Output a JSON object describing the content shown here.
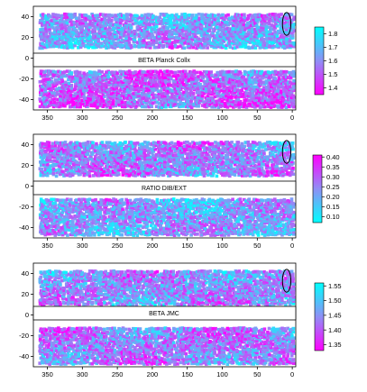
{
  "chart_data": [
    {
      "type": "scatter",
      "map_label": "BETA Planck Collx",
      "x_ticks": [
        350,
        300,
        250,
        200,
        150,
        100,
        50,
        0
      ],
      "y_ticks": [
        40,
        20,
        0,
        -20,
        -40
      ],
      "xlim": [
        370,
        -5
      ],
      "ylim": [
        -50,
        50
      ],
      "colorbar": {
        "min": 1.35,
        "max": 1.85,
        "ticks": [
          "1.8",
          "1.7",
          "1.6",
          "1.5",
          "1.4"
        ],
        "tick_values": [
          1.8,
          1.7,
          1.6,
          1.5,
          1.4
        ],
        "low_color": "#ff00ff",
        "high_color": "#00ffff"
      },
      "north_mean": 0.55,
      "south_mean": 0.35,
      "ellipse": {
        "x": 8,
        "y": 33,
        "rx": 6,
        "ry": 11
      }
    },
    {
      "type": "scatter",
      "map_label": "RATIO DIB/EXT",
      "x_ticks": [
        350,
        300,
        250,
        200,
        150,
        100,
        50,
        0
      ],
      "y_ticks": [
        40,
        20,
        0,
        -20,
        -40
      ],
      "xlim": [
        370,
        -5
      ],
      "ylim": [
        -50,
        50
      ],
      "colorbar": {
        "min": 0.07,
        "max": 0.41,
        "ticks": [
          "0.40",
          "0.35",
          "0.30",
          "0.25",
          "0.20",
          "0.15",
          "0.10"
        ],
        "tick_values": [
          0.4,
          0.35,
          0.3,
          0.25,
          0.2,
          0.15,
          0.1
        ],
        "low_color": "#00ffff",
        "high_color": "#ff00ff"
      },
      "north_mean": 0.55,
      "south_mean": 0.45,
      "ellipse": {
        "x": 8,
        "y": 33,
        "rx": 6,
        "ry": 11
      }
    },
    {
      "type": "scatter",
      "map_label": "BETA JMC",
      "x_ticks": [
        350,
        300,
        250,
        200,
        150,
        100,
        50,
        0
      ],
      "y_ticks": [
        40,
        20,
        0,
        -20,
        -40
      ],
      "xlim": [
        370,
        -5
      ],
      "ylim": [
        -50,
        50
      ],
      "colorbar": {
        "min": 1.33,
        "max": 1.56,
        "ticks": [
          "1.55",
          "1.50",
          "1.45",
          "1.40",
          "1.35"
        ],
        "tick_values": [
          1.55,
          1.5,
          1.45,
          1.4,
          1.35
        ],
        "low_color": "#ff00ff",
        "high_color": "#00ffff"
      },
      "north_mean": 0.5,
      "south_mean": 0.45,
      "ellipse": {
        "x": 8,
        "y": 33,
        "rx": 6,
        "ry": 11
      }
    }
  ]
}
